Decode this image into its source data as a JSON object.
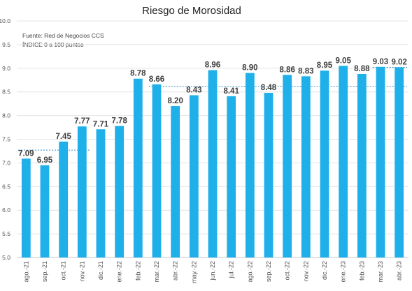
{
  "chart_data": {
    "type": "bar",
    "title": "Riesgo de Morosidad",
    "notes": [
      "Fuente: Red de Negocios CCS",
      "ÍNDICE 0 a 100  puntos"
    ],
    "categories": [
      "ago.-21",
      "sep.-21",
      "oct.-21",
      "nov.-21",
      "dic.-21",
      "ene.-22",
      "feb.-22",
      "mar.-22",
      "abr.-22",
      "may.-22",
      "jun.-22",
      "jul.-22",
      "ago.-22",
      "sep.-22",
      "oct.-22",
      "nov.-22",
      "dic.-22",
      "ene.-23",
      "feb.-23",
      "mar.-23",
      "abr.-23"
    ],
    "values": [
      7.09,
      6.95,
      7.45,
      7.77,
      7.71,
      7.78,
      8.78,
      8.66,
      8.2,
      8.43,
      8.96,
      8.41,
      8.9,
      8.48,
      8.86,
      8.83,
      8.95,
      9.05,
      8.88,
      9.03,
      9.02
    ],
    "value_labels": [
      "7.09",
      "6.95",
      "7.45",
      "7.77",
      "7.71",
      "7.78",
      "8.78",
      "8.66",
      "8.20",
      "8.43",
      "8.96",
      "8.41",
      "8.90",
      "8.48",
      "8.86",
      "8.83",
      "8.95",
      "9.05",
      "8.88",
      "9.03",
      "9.02"
    ],
    "ylim": [
      5.0,
      10.0
    ],
    "yticks": [
      "5.0",
      "5.5",
      "6.0",
      "6.5",
      "7.0",
      "7.5",
      "8.0",
      "8.5",
      "9.0",
      "9.5",
      "10.0"
    ],
    "reference_lines": [
      {
        "value": 7.27,
        "from": "ago.-21",
        "to": "nov.-21"
      },
      {
        "value": 8.62,
        "from": "mar.-22",
        "to": "abr.-23"
      },
      {
        "value": 9.02,
        "from": "mar.-23",
        "to": "abr.-23"
      }
    ],
    "grid": true,
    "colors": {
      "bar": "#1fb0ea",
      "reference": "#2f8fd0"
    }
  }
}
